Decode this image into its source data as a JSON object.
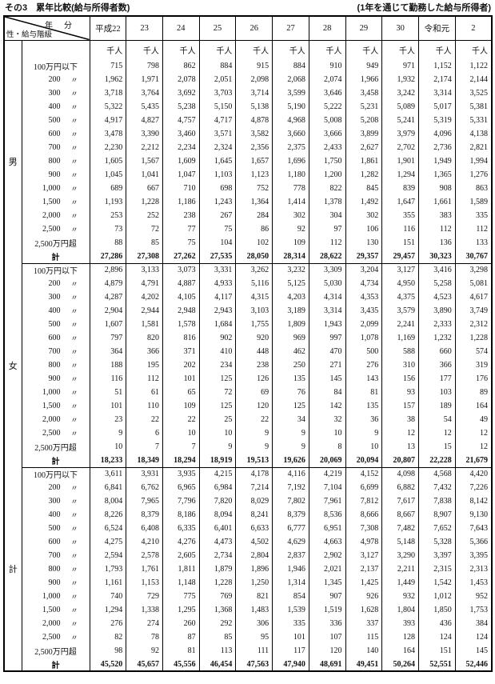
{
  "page": {
    "title_left": "その3　累年比較(給与所得者数)",
    "title_right": "(1年を通じて勤務した給与所得者)"
  },
  "colors": {
    "border": "#000000",
    "text": "#111111",
    "background": "#ffffff"
  },
  "table": {
    "corner": {
      "top_label": "年　分",
      "bottom_label": "性・給与階級"
    },
    "years": [
      "平成22",
      "23",
      "24",
      "25",
      "26",
      "27",
      "28",
      "29",
      "30",
      "令和元",
      "2"
    ],
    "unit_label": "千人",
    "ditto_mark": "〃",
    "row_labels": [
      {
        "text": "100万円以下",
        "ditto": false,
        "total": false
      },
      {
        "text": "200",
        "ditto": true,
        "total": false
      },
      {
        "text": "300",
        "ditto": true,
        "total": false
      },
      {
        "text": "400",
        "ditto": true,
        "total": false
      },
      {
        "text": "500",
        "ditto": true,
        "total": false
      },
      {
        "text": "600",
        "ditto": true,
        "total": false
      },
      {
        "text": "700",
        "ditto": true,
        "total": false
      },
      {
        "text": "800",
        "ditto": true,
        "total": false
      },
      {
        "text": "900",
        "ditto": true,
        "total": false
      },
      {
        "text": "1,000",
        "ditto": true,
        "total": false
      },
      {
        "text": "1,500",
        "ditto": true,
        "total": false
      },
      {
        "text": "2,000",
        "ditto": true,
        "total": false
      },
      {
        "text": "2,500",
        "ditto": true,
        "total": false
      },
      {
        "text": "2,500万円超",
        "ditto": false,
        "total": false
      },
      {
        "text": "計",
        "ditto": false,
        "total": true
      }
    ],
    "sections": [
      {
        "group": "男",
        "rows": [
          [
            "715",
            "798",
            "862",
            "884",
            "915",
            "884",
            "910",
            "949",
            "971",
            "1,152",
            "1,122"
          ],
          [
            "1,962",
            "1,971",
            "2,078",
            "2,051",
            "2,098",
            "2,068",
            "2,074",
            "1,966",
            "1,932",
            "2,174",
            "2,144"
          ],
          [
            "3,718",
            "3,764",
            "3,692",
            "3,703",
            "3,714",
            "3,599",
            "3,646",
            "3,458",
            "3,242",
            "3,314",
            "3,525"
          ],
          [
            "5,322",
            "5,435",
            "5,238",
            "5,150",
            "5,138",
            "5,190",
            "5,222",
            "5,231",
            "5,089",
            "5,017",
            "5,381"
          ],
          [
            "4,917",
            "4,827",
            "4,757",
            "4,717",
            "4,878",
            "4,968",
            "5,008",
            "5,208",
            "5,241",
            "5,319",
            "5,331"
          ],
          [
            "3,478",
            "3,390",
            "3,460",
            "3,571",
            "3,582",
            "3,660",
            "3,666",
            "3,899",
            "3,979",
            "4,096",
            "4,138"
          ],
          [
            "2,230",
            "2,212",
            "2,234",
            "2,324",
            "2,356",
            "2,375",
            "2,433",
            "2,627",
            "2,702",
            "2,736",
            "2,821"
          ],
          [
            "1,605",
            "1,567",
            "1,609",
            "1,645",
            "1,657",
            "1,696",
            "1,750",
            "1,861",
            "1,901",
            "1,949",
            "1,994"
          ],
          [
            "1,045",
            "1,041",
            "1,047",
            "1,103",
            "1,123",
            "1,180",
            "1,200",
            "1,282",
            "1,294",
            "1,365",
            "1,276"
          ],
          [
            "689",
            "667",
            "710",
            "698",
            "752",
            "778",
            "822",
            "845",
            "839",
            "908",
            "863"
          ],
          [
            "1,193",
            "1,228",
            "1,186",
            "1,243",
            "1,364",
            "1,414",
            "1,378",
            "1,492",
            "1,647",
            "1,661",
            "1,589"
          ],
          [
            "253",
            "252",
            "238",
            "267",
            "284",
            "302",
            "304",
            "302",
            "355",
            "383",
            "335"
          ],
          [
            "73",
            "72",
            "77",
            "75",
            "86",
            "92",
            "97",
            "106",
            "116",
            "112",
            "112"
          ],
          [
            "88",
            "85",
            "75",
            "104",
            "102",
            "109",
            "112",
            "130",
            "151",
            "136",
            "133"
          ],
          [
            "27,286",
            "27,308",
            "27,262",
            "27,535",
            "28,050",
            "28,314",
            "28,622",
            "29,357",
            "29,457",
            "30,323",
            "30,767"
          ]
        ]
      },
      {
        "group": "女",
        "rows": [
          [
            "2,896",
            "3,133",
            "3,073",
            "3,331",
            "3,262",
            "3,232",
            "3,309",
            "3,204",
            "3,127",
            "3,416",
            "3,298"
          ],
          [
            "4,879",
            "4,791",
            "4,887",
            "4,933",
            "5,116",
            "5,125",
            "5,030",
            "4,734",
            "4,950",
            "5,258",
            "5,081"
          ],
          [
            "4,287",
            "4,202",
            "4,105",
            "4,117",
            "4,315",
            "4,203",
            "4,314",
            "4,353",
            "4,375",
            "4,523",
            "4,617"
          ],
          [
            "2,904",
            "2,944",
            "2,948",
            "2,943",
            "3,103",
            "3,189",
            "3,314",
            "3,435",
            "3,579",
            "3,890",
            "3,749"
          ],
          [
            "1,607",
            "1,581",
            "1,578",
            "1,684",
            "1,755",
            "1,809",
            "1,943",
            "2,099",
            "2,241",
            "2,333",
            "2,312"
          ],
          [
            "797",
            "820",
            "816",
            "902",
            "920",
            "969",
            "997",
            "1,078",
            "1,169",
            "1,232",
            "1,228"
          ],
          [
            "364",
            "366",
            "371",
            "410",
            "448",
            "462",
            "470",
            "500",
            "588",
            "660",
            "574"
          ],
          [
            "188",
            "195",
            "202",
            "234",
            "238",
            "250",
            "271",
            "276",
            "310",
            "366",
            "319"
          ],
          [
            "116",
            "112",
            "101",
            "125",
            "126",
            "135",
            "145",
            "143",
            "156",
            "177",
            "176"
          ],
          [
            "51",
            "61",
            "65",
            "72",
            "69",
            "76",
            "84",
            "81",
            "93",
            "103",
            "89"
          ],
          [
            "101",
            "110",
            "109",
            "125",
            "120",
            "125",
            "142",
            "135",
            "157",
            "189",
            "164"
          ],
          [
            "23",
            "22",
            "22",
            "25",
            "22",
            "34",
            "32",
            "36",
            "38",
            "54",
            "49"
          ],
          [
            "9",
            "6",
            "10",
            "10",
            "9",
            "9",
            "10",
            "9",
            "12",
            "12",
            "12"
          ],
          [
            "10",
            "7",
            "7",
            "9",
            "9",
            "9",
            "8",
            "10",
            "13",
            "15",
            "12"
          ],
          [
            "18,233",
            "18,349",
            "18,294",
            "18,919",
            "19,513",
            "19,626",
            "20,069",
            "20,094",
            "20,807",
            "22,228",
            "21,679"
          ]
        ]
      },
      {
        "group": "計",
        "rows": [
          [
            "3,611",
            "3,931",
            "3,935",
            "4,215",
            "4,178",
            "4,116",
            "4,219",
            "4,152",
            "4,098",
            "4,568",
            "4,420"
          ],
          [
            "6,841",
            "6,762",
            "6,965",
            "6,984",
            "7,214",
            "7,192",
            "7,104",
            "6,699",
            "6,882",
            "7,432",
            "7,226"
          ],
          [
            "8,004",
            "7,965",
            "7,796",
            "7,820",
            "8,029",
            "7,802",
            "7,961",
            "7,812",
            "7,617",
            "7,838",
            "8,142"
          ],
          [
            "8,226",
            "8,379",
            "8,186",
            "8,094",
            "8,241",
            "8,379",
            "8,536",
            "8,666",
            "8,667",
            "8,907",
            "9,130"
          ],
          [
            "6,524",
            "6,408",
            "6,335",
            "6,401",
            "6,633",
            "6,777",
            "6,951",
            "7,308",
            "7,482",
            "7,652",
            "7,643"
          ],
          [
            "4,275",
            "4,210",
            "4,276",
            "4,473",
            "4,502",
            "4,629",
            "4,663",
            "4,978",
            "5,148",
            "5,328",
            "5,366"
          ],
          [
            "2,594",
            "2,578",
            "2,605",
            "2,734",
            "2,804",
            "2,837",
            "2,902",
            "3,127",
            "3,290",
            "3,397",
            "3,395"
          ],
          [
            "1,793",
            "1,761",
            "1,811",
            "1,879",
            "1,896",
            "1,946",
            "2,021",
            "2,137",
            "2,211",
            "2,315",
            "2,313"
          ],
          [
            "1,161",
            "1,153",
            "1,148",
            "1,228",
            "1,250",
            "1,314",
            "1,345",
            "1,425",
            "1,449",
            "1,542",
            "1,453"
          ],
          [
            "740",
            "729",
            "775",
            "769",
            "821",
            "854",
            "907",
            "926",
            "932",
            "1,012",
            "952"
          ],
          [
            "1,294",
            "1,338",
            "1,295",
            "1,368",
            "1,483",
            "1,539",
            "1,519",
            "1,628",
            "1,804",
            "1,850",
            "1,753"
          ],
          [
            "276",
            "274",
            "260",
            "292",
            "306",
            "335",
            "336",
            "337",
            "393",
            "436",
            "384"
          ],
          [
            "82",
            "78",
            "87",
            "85",
            "95",
            "101",
            "107",
            "115",
            "128",
            "124",
            "124"
          ],
          [
            "98",
            "92",
            "81",
            "113",
            "111",
            "117",
            "120",
            "140",
            "164",
            "151",
            "145"
          ],
          [
            "45,520",
            "45,657",
            "45,556",
            "46,454",
            "47,563",
            "47,940",
            "48,691",
            "49,451",
            "50,264",
            "52,551",
            "52,446"
          ]
        ]
      }
    ]
  }
}
